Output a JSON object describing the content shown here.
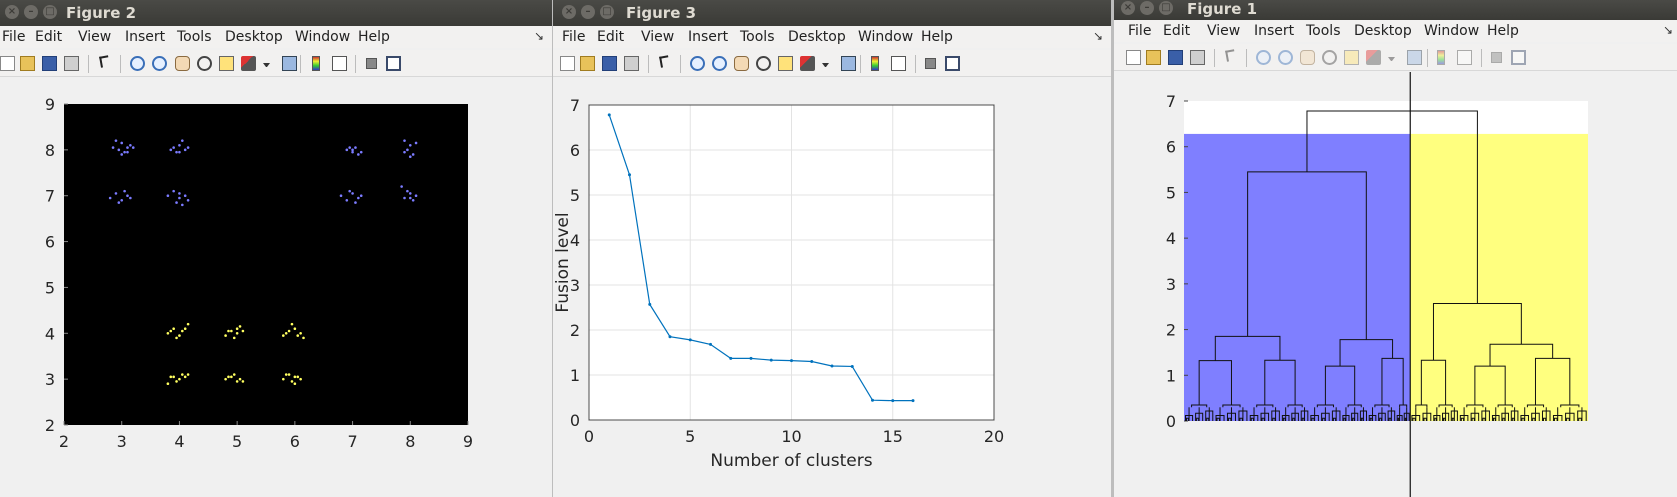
{
  "windows": [
    {
      "id": "fig2",
      "title": "Figure 2"
    },
    {
      "id": "fig3",
      "title": "Figure 3"
    },
    {
      "id": "fig1",
      "title": "Figure 1"
    }
  ],
  "menus": [
    "File",
    "Edit",
    "View",
    "Insert",
    "Tools",
    "Desktop",
    "Window",
    "Help"
  ],
  "toolbar_icons": [
    "new-figure-icon",
    "open-file-icon",
    "save-icon",
    "print-icon",
    "pointer-icon",
    "zoom-in-icon",
    "zoom-out-icon",
    "pan-hand-icon",
    "rotate-3d-icon",
    "data-cursor-icon",
    "brush-icon",
    "brush-dropdown-icon",
    "link-plot-icon",
    "colorbar-icon",
    "legend-icon",
    "hide-plot-tools-icon",
    "show-plot-tools-icon"
  ],
  "chart_data": [
    {
      "type": "scatter",
      "figure": "Figure 2",
      "background": "#000000",
      "xlim": [
        2,
        9
      ],
      "ylim": [
        2,
        9
      ],
      "xticks": [
        "2",
        "3",
        "4",
        "5",
        "6",
        "7",
        "8",
        "9"
      ],
      "yticks": [
        "2",
        "3",
        "4",
        "5",
        "6",
        "7",
        "8",
        "9"
      ],
      "series": [
        {
          "color": "#7b7bff",
          "points": [
            [
              2.9,
              8.2
            ],
            [
              3.0,
              8.15
            ],
            [
              3.1,
              8.05
            ],
            [
              2.95,
              8.0
            ],
            [
              3.05,
              7.95
            ],
            [
              3.15,
              8.1
            ],
            [
              2.85,
              8.05
            ],
            [
              3.0,
              7.9
            ],
            [
              3.1,
              7.95
            ],
            [
              3.2,
              8.05
            ],
            [
              3.9,
              8.05
            ],
            [
              4.0,
              8.1
            ],
            [
              4.1,
              8.0
            ],
            [
              3.95,
              7.95
            ],
            [
              4.05,
              8.2
            ],
            [
              4.15,
              8.05
            ],
            [
              3.85,
              8.0
            ],
            [
              4.0,
              7.95
            ],
            [
              6.9,
              8.0
            ],
            [
              7.0,
              7.95
            ],
            [
              7.05,
              8.05
            ],
            [
              7.1,
              7.9
            ],
            [
              6.95,
              8.05
            ],
            [
              7.15,
              7.95
            ],
            [
              7.0,
              8.0
            ],
            [
              7.9,
              8.2
            ],
            [
              8.0,
              8.1
            ],
            [
              8.05,
              7.9
            ],
            [
              7.95,
              8.0
            ],
            [
              8.1,
              8.15
            ],
            [
              7.9,
              7.95
            ],
            [
              8.0,
              7.85
            ],
            [
              2.8,
              6.95
            ],
            [
              2.9,
              7.05
            ],
            [
              3.0,
              6.9
            ],
            [
              3.05,
              7.1
            ],
            [
              3.15,
              6.95
            ],
            [
              2.95,
              6.85
            ],
            [
              3.1,
              7.0
            ],
            [
              3.8,
              7.0
            ],
            [
              3.9,
              7.1
            ],
            [
              4.0,
              6.95
            ],
            [
              4.05,
              6.8
            ],
            [
              4.1,
              7.0
            ],
            [
              3.95,
              6.85
            ],
            [
              4.15,
              6.9
            ],
            [
              4.0,
              7.05
            ],
            [
              6.8,
              7.0
            ],
            [
              6.9,
              6.9
            ],
            [
              7.0,
              7.05
            ],
            [
              7.05,
              6.85
            ],
            [
              7.1,
              6.95
            ],
            [
              6.95,
              7.1
            ],
            [
              7.15,
              7.0
            ],
            [
              7.85,
              7.2
            ],
            [
              7.95,
              7.1
            ],
            [
              8.0,
              6.95
            ],
            [
              8.05,
              6.9
            ],
            [
              8.1,
              7.0
            ],
            [
              7.9,
              6.95
            ],
            [
              8.0,
              7.05
            ]
          ]
        },
        {
          "color": "#ffff60",
          "points": [
            [
              3.8,
              4.0
            ],
            [
              3.9,
              4.1
            ],
            [
              4.0,
              3.95
            ],
            [
              4.05,
              4.05
            ],
            [
              4.1,
              4.1
            ],
            [
              3.95,
              3.9
            ],
            [
              3.85,
              4.05
            ],
            [
              4.15,
              4.2
            ],
            [
              4.8,
              3.95
            ],
            [
              4.9,
              4.05
            ],
            [
              5.0,
              4.0
            ],
            [
              4.95,
              3.9
            ],
            [
              5.05,
              4.15
            ],
            [
              5.1,
              4.05
            ],
            [
              4.85,
              4.05
            ],
            [
              5.0,
              4.1
            ],
            [
              5.8,
              3.95
            ],
            [
              5.9,
              4.05
            ],
            [
              6.0,
              4.1
            ],
            [
              6.05,
              3.95
            ],
            [
              6.1,
              4.0
            ],
            [
              5.95,
              4.2
            ],
            [
              6.15,
              3.9
            ],
            [
              5.85,
              4.0
            ],
            [
              3.8,
              2.9
            ],
            [
              3.9,
              3.05
            ],
            [
              4.0,
              3.0
            ],
            [
              4.05,
              3.1
            ],
            [
              4.1,
              3.05
            ],
            [
              3.95,
              2.95
            ],
            [
              4.15,
              3.1
            ],
            [
              3.85,
              3.05
            ],
            [
              4.8,
              3.0
            ],
            [
              4.9,
              3.05
            ],
            [
              5.0,
              2.95
            ],
            [
              5.05,
              3.0
            ],
            [
              4.95,
              3.1
            ],
            [
              5.1,
              2.95
            ],
            [
              4.85,
              3.05
            ],
            [
              5.8,
              3.0
            ],
            [
              5.9,
              3.1
            ],
            [
              6.0,
              2.9
            ],
            [
              6.05,
              3.05
            ],
            [
              6.1,
              3.0
            ],
            [
              5.95,
              2.95
            ],
            [
              5.85,
              3.1
            ],
            [
              6.0,
              3.05
            ]
          ]
        }
      ]
    },
    {
      "type": "line",
      "figure": "Figure 3",
      "xlabel": "Number of clusters",
      "ylabel": "Fusion level",
      "xlim": [
        0,
        20
      ],
      "ylim": [
        0,
        7
      ],
      "xticks": [
        "0",
        "5",
        "10",
        "15",
        "20"
      ],
      "yticks": [
        "0",
        "1",
        "2",
        "3",
        "4",
        "5",
        "6",
        "7"
      ],
      "grid": true,
      "color": "#0072bd",
      "x": [
        1,
        2,
        3,
        4,
        5,
        6,
        7,
        8,
        9,
        10,
        11,
        12,
        13,
        14,
        15,
        16
      ],
      "y": [
        6.78,
        5.45,
        2.57,
        1.85,
        1.78,
        1.68,
        1.37,
        1.37,
        1.33,
        1.32,
        1.3,
        1.2,
        1.19,
        0.44,
        0.43,
        0.43
      ]
    },
    {
      "type": "dendrogram",
      "figure": "Figure 1",
      "ylim": [
        0,
        7
      ],
      "yticks": [
        "0",
        "1",
        "2",
        "3",
        "4",
        "5",
        "6",
        "7"
      ],
      "xlim": [
        0,
        1
      ],
      "threshold": 6.28,
      "cut_x": 0.56,
      "regions": [
        {
          "color": "#7f7fff",
          "x_from": 0,
          "x_to": 0.56
        },
        {
          "color": "#ffff7f",
          "x_from": 0.56,
          "x_to": 1
        }
      ],
      "root_height": 6.78,
      "left_cluster": {
        "height": 5.45,
        "children": [
          {
            "height": 1.85
          },
          {
            "height": 1.78
          }
        ],
        "sub_heights": [
          1.32,
          1.33,
          1.2,
          1.37
        ]
      },
      "right_cluster": {
        "height": 2.57,
        "children": [
          {
            "height": 1.33
          },
          {
            "height": 1.68
          }
        ],
        "sub_heights": [
          1.2,
          1.37
        ]
      }
    }
  ]
}
